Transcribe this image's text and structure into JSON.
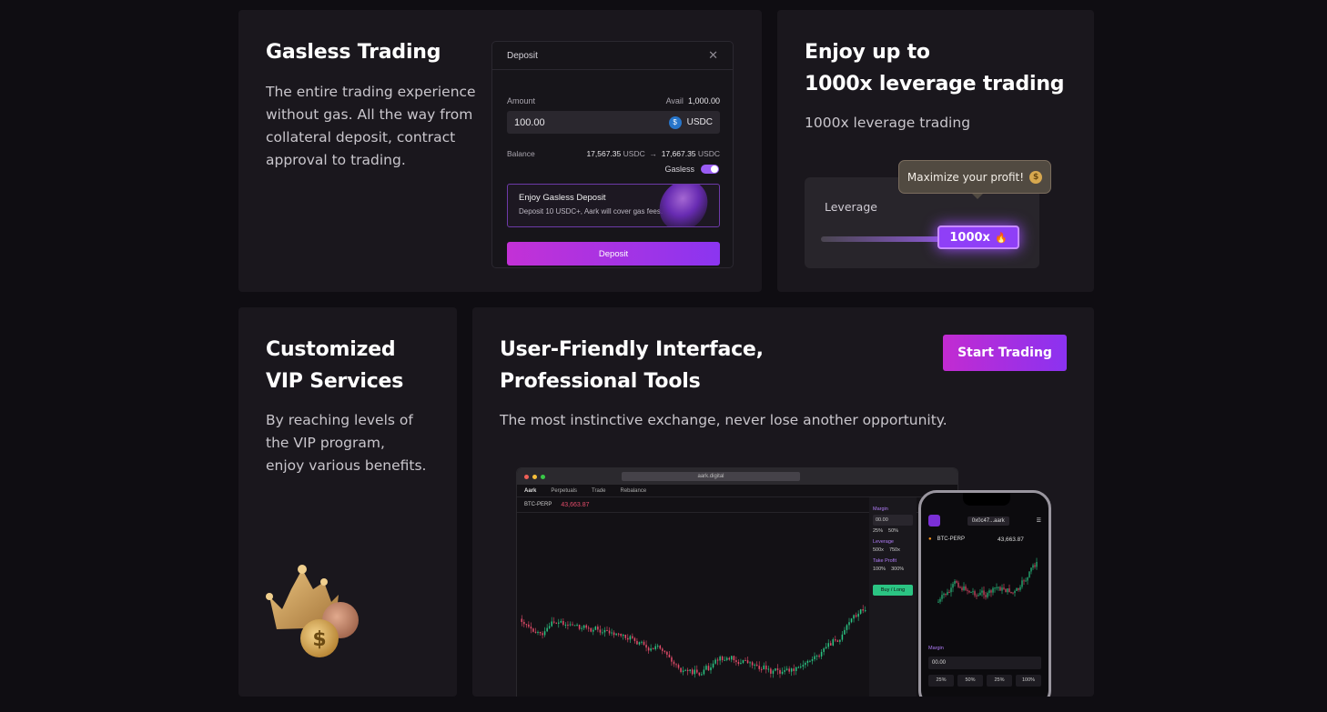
{
  "gasless_card": {
    "title": "Gasless Trading",
    "description": "The entire trading experience without gas. All the way from collateral deposit, contract approval to trading.",
    "deposit_modal": {
      "title": "Deposit",
      "amount_label": "Amount",
      "avail_label": "Avail",
      "avail_value": "1,000.00",
      "amount_value": "100.00",
      "token": "USDC",
      "balance_label": "Balance",
      "balance_from": "17,567.35",
      "balance_from_unit": "USDC",
      "arrow": "→",
      "balance_to": "17,667.35",
      "balance_to_unit": "USDC",
      "gasless_label": "Gasless",
      "gasless_on": true,
      "promo_title": "Enjoy Gasless Deposit",
      "promo_desc": "Deposit 10 USDC+, Aark will cover gas fees.",
      "deposit_button": "Deposit"
    }
  },
  "leverage_card": {
    "title_line1": "Enjoy up to",
    "title_line2": "1000x leverage trading",
    "description": "1000x leverage trading",
    "tooltip": "Maximize your profit!",
    "leverage_label": "Leverage",
    "leverage_value": "1000x",
    "fire_icon": "🔥",
    "coin_icon": "$"
  },
  "vip_card": {
    "title_line1": "Customized",
    "title_line2": "VIP Services",
    "description_line1": "By reaching levels of",
    "description_line2": "the VIP program,",
    "description_line3": "enjoy various benefits.",
    "coin_symbol": "$"
  },
  "interface_card": {
    "title_line1": "User-Friendly Interface,",
    "title_line2": "Professional Tools",
    "description": "The most instinctive exchange, never lose another opportunity.",
    "start_button": "Start Trading",
    "desktop": {
      "url": "aark.digital",
      "brand": "Aark",
      "nav": [
        "Perpetuals",
        "Trade",
        "Rebalance"
      ],
      "pair": "BTC-PERP",
      "price": "43,663.87",
      "side_panel": {
        "margin_label": "Margin",
        "margin_value": "00.00",
        "pcts": [
          "25%",
          "50%"
        ],
        "leverage_label": "Leverage",
        "leverage_vals": [
          "500x",
          "750x"
        ],
        "tp_label": "Take Profit",
        "tp_vals": [
          "100%",
          "300%"
        ],
        "buy_label": "Buy / Long"
      }
    },
    "phone": {
      "address": "0x0c47...aark",
      "pair": "BTC-PERP",
      "price": "43,663.87",
      "margin_label": "Margin",
      "margin_value": "00.00",
      "pcts": [
        "25%",
        "50%",
        "25%",
        "100%"
      ]
    }
  }
}
